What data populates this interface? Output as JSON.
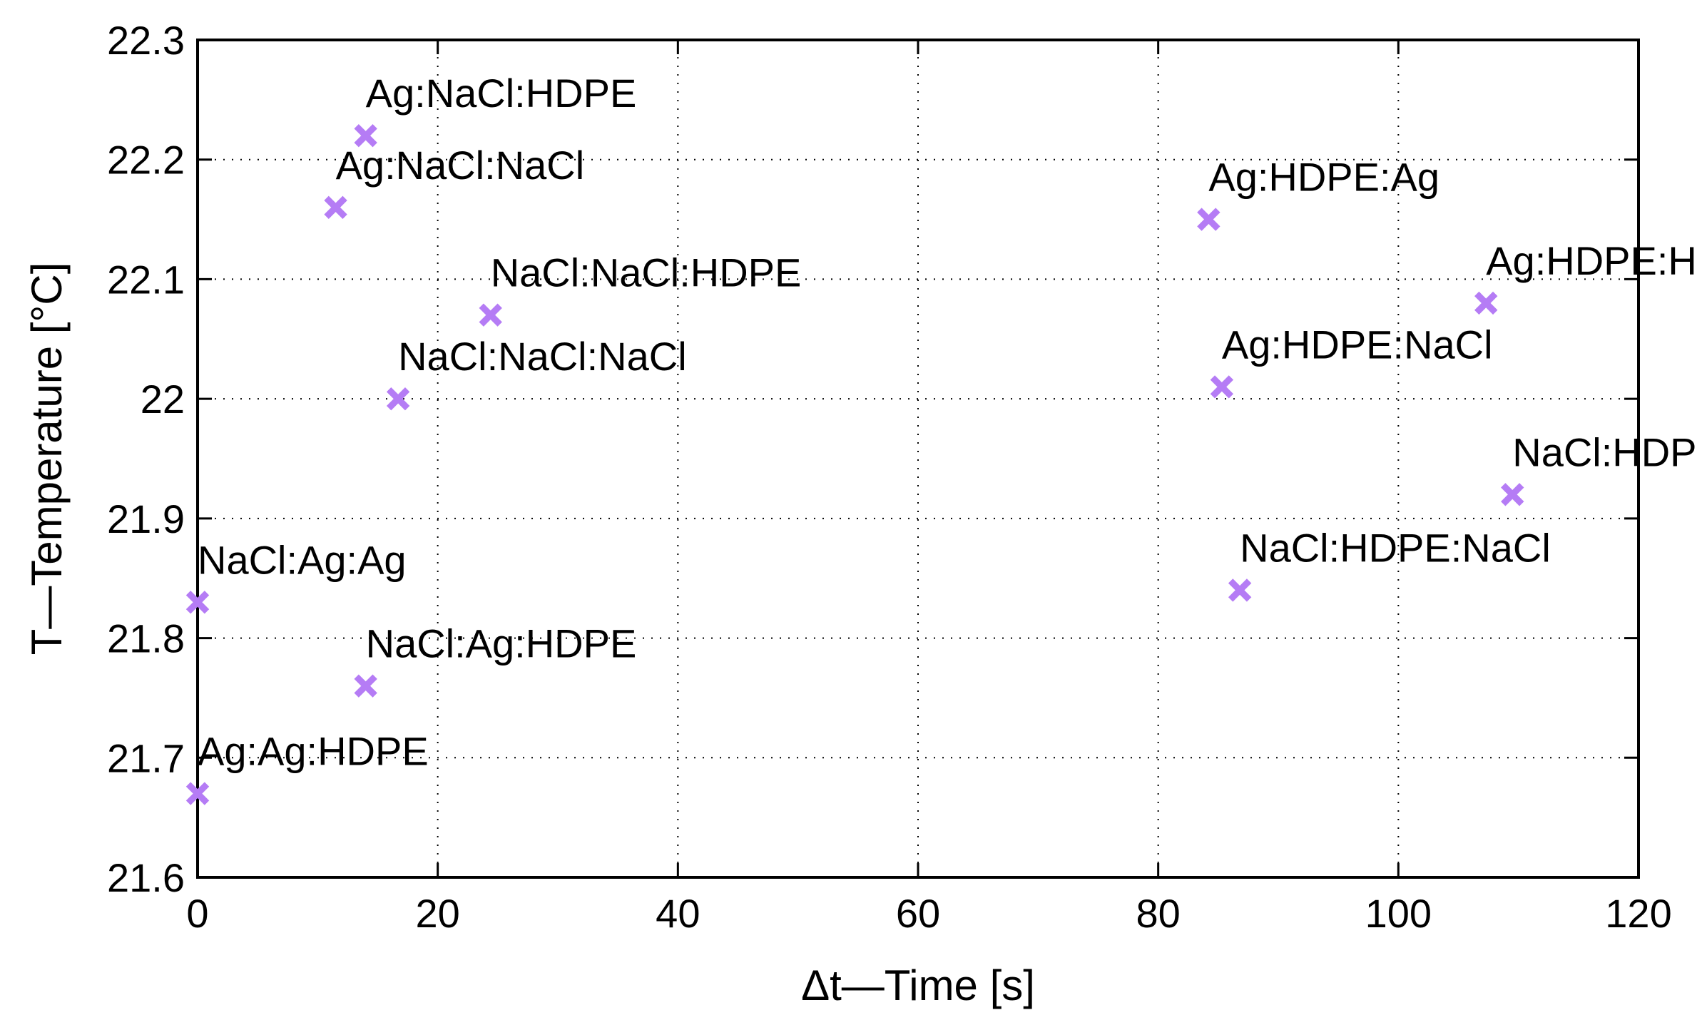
{
  "chart_data": {
    "type": "scatter",
    "title": "",
    "xlabel": "Δt—Time [s]",
    "ylabel": "T—Temperature [°C]",
    "xlim": [
      0,
      120
    ],
    "ylim": [
      21.6,
      22.3
    ],
    "x_ticks": [
      0,
      20,
      40,
      60,
      80,
      100,
      120
    ],
    "x_tick_labels": [
      "0",
      "20",
      "40",
      "60",
      "80",
      "100",
      "120"
    ],
    "y_ticks": [
      21.6,
      21.7,
      21.8,
      21.9,
      22.0,
      22.1,
      22.2,
      22.3
    ],
    "y_tick_labels": [
      "21.6",
      "21.7",
      "21.8",
      "21.9",
      "22",
      "22.1",
      "22.2",
      "22.3"
    ],
    "grid": true,
    "marker_color": "#b57cf5",
    "series": [
      {
        "points": [
          {
            "x": 0,
            "y": 21.67,
            "label": "Ag:Ag:HDPE"
          },
          {
            "x": 0,
            "y": 21.83,
            "label": "NaCl:Ag:Ag"
          },
          {
            "x": 11.5,
            "y": 22.16,
            "label": "Ag:NaCl:NaCl"
          },
          {
            "x": 14,
            "y": 22.22,
            "label": "Ag:NaCl:HDPE"
          },
          {
            "x": 14,
            "y": 21.76,
            "label": "NaCl:Ag:HDPE"
          },
          {
            "x": 16.7,
            "y": 22.0,
            "label": "NaCl:NaCl:NaCl"
          },
          {
            "x": 24.4,
            "y": 22.07,
            "label": "NaCl:NaCl:HDPE"
          },
          {
            "x": 84.2,
            "y": 22.15,
            "label": "Ag:HDPE:Ag"
          },
          {
            "x": 85.3,
            "y": 22.01,
            "label": "Ag:HDPE:NaCl"
          },
          {
            "x": 86.8,
            "y": 21.84,
            "label": "NaCl:HDPE:NaCl"
          },
          {
            "x": 107.3,
            "y": 22.08,
            "label": "Ag:HDPE:HDPE"
          },
          {
            "x": 109.5,
            "y": 21.92,
            "label": "NaCl:HDPE:HDPE"
          }
        ]
      }
    ]
  }
}
